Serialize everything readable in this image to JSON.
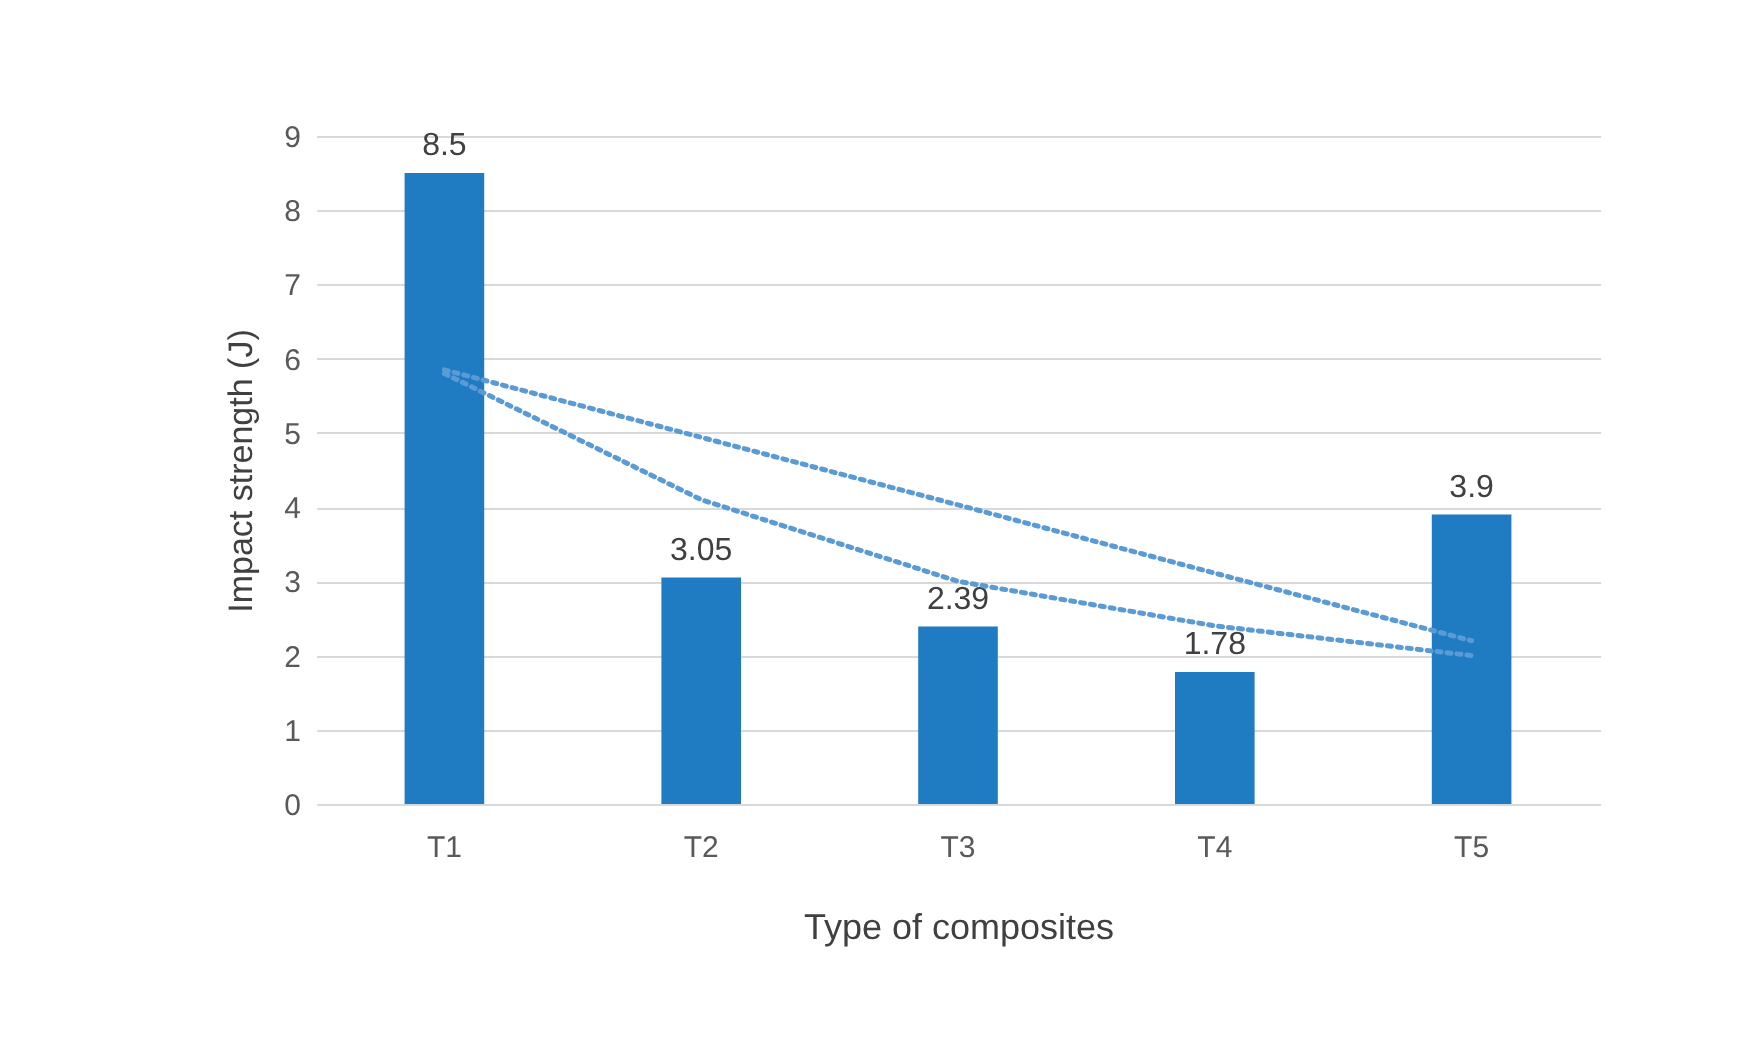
{
  "chart_data": {
    "type": "bar",
    "xlabel": "Type of composites",
    "ylabel": "Impact strength  (J)",
    "categories": [
      "T1",
      "T2",
      "T3",
      "T4",
      "T5"
    ],
    "series": [
      {
        "color": "#1f7bc2",
        "values": [
          8.5,
          3.05,
          2.39,
          1.78,
          3.9
        ],
        "value_labels": [
          "8.5",
          "3.05",
          "2.39",
          "1.78",
          "3.9"
        ]
      },
      {
        "type": "line",
        "color": "#5b9bd5",
        "line_style": "dotted",
        "values": [
          5.85,
          4.94,
          4.03,
          3.11,
          2.2
        ]
      },
      {
        "type": "line",
        "color": "#5b9bd5",
        "line_style": "dotted",
        "values": [
          5.8,
          4.1,
          3.0,
          2.4,
          2.0
        ]
      }
    ],
    "ylim": [
      0,
      9
    ],
    "yticks": [
      0,
      1,
      2,
      3,
      4,
      5,
      6,
      7,
      8,
      9
    ],
    "grid": "y"
  }
}
